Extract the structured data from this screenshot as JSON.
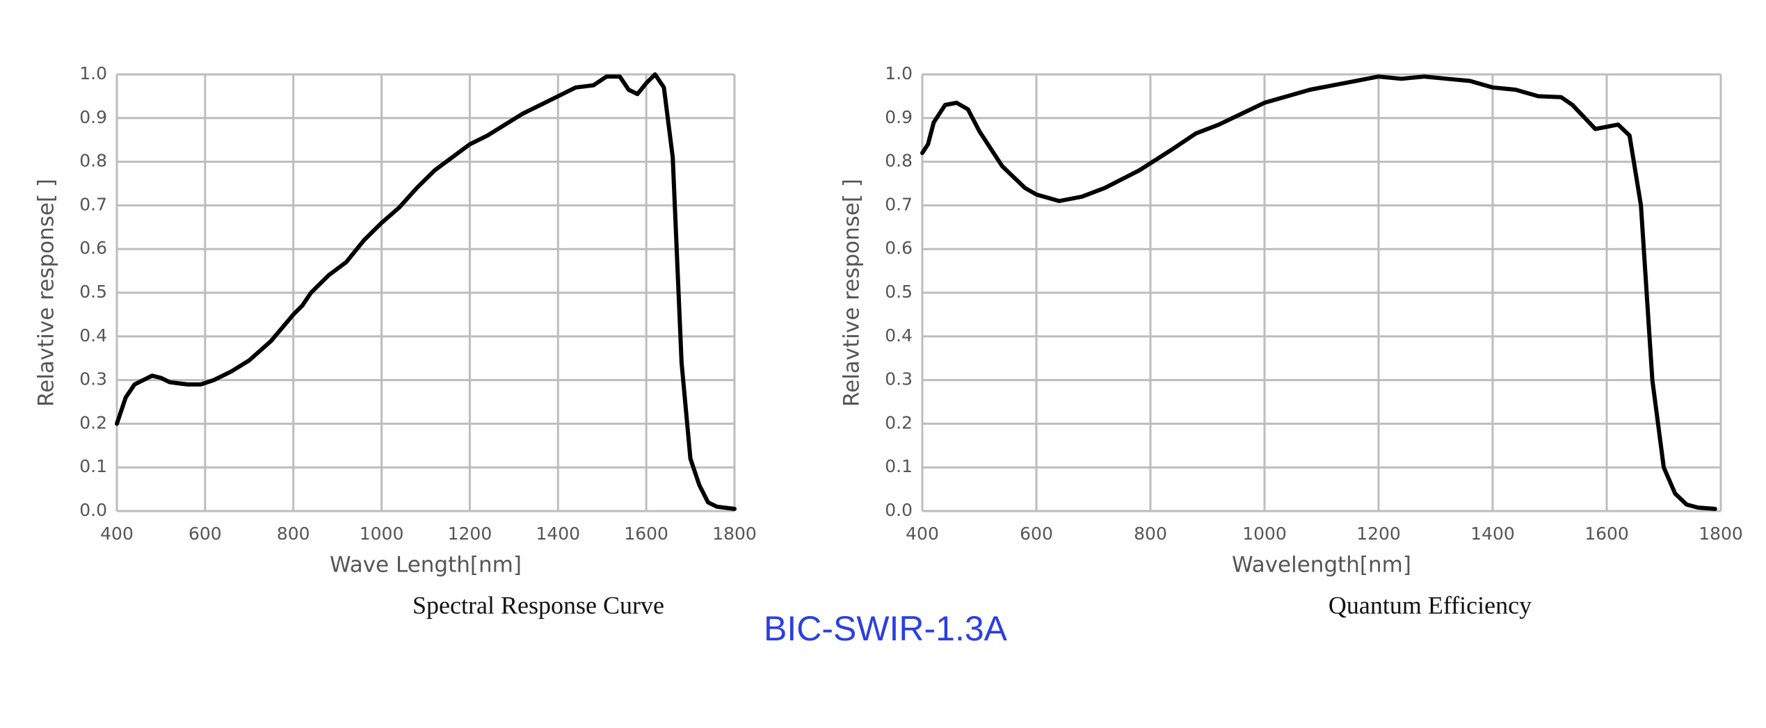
{
  "label": "BIC-SWIR-1.3A",
  "chart_data": [
    {
      "type": "line",
      "title": "Spectral Response Curve",
      "xlabel": "Wave Length[nm]",
      "ylabel": "Relavtive response[ ]",
      "color": "#000000",
      "grid": true,
      "x": [
        400,
        420,
        440,
        460,
        480,
        500,
        520,
        560,
        590,
        620,
        660,
        700,
        750,
        800,
        820,
        840,
        880,
        920,
        960,
        1000,
        1040,
        1080,
        1120,
        1160,
        1200,
        1240,
        1280,
        1320,
        1360,
        1400,
        1440,
        1480,
        1510,
        1540,
        1560,
        1580,
        1600,
        1620,
        1640,
        1660,
        1680,
        1700,
        1720,
        1740,
        1760,
        1800
      ],
      "values": [
        0.2,
        0.26,
        0.29,
        0.3,
        0.31,
        0.305,
        0.295,
        0.29,
        0.29,
        0.3,
        0.32,
        0.345,
        0.39,
        0.45,
        0.47,
        0.5,
        0.54,
        0.57,
        0.62,
        0.66,
        0.695,
        0.74,
        0.78,
        0.81,
        0.84,
        0.86,
        0.885,
        0.91,
        0.93,
        0.95,
        0.97,
        0.975,
        0.995,
        0.995,
        0.965,
        0.955,
        0.98,
        1.0,
        0.97,
        0.81,
        0.34,
        0.12,
        0.06,
        0.02,
        0.01,
        0.005
      ],
      "xlim": [
        400,
        1800
      ],
      "xticks": [
        400,
        600,
        800,
        1000,
        1200,
        1400,
        1600,
        1800
      ],
      "ylim": [
        0,
        1
      ],
      "yticks": [
        {
          "value": 0,
          "label": "0.0"
        },
        0.1,
        0.2,
        0.3,
        0.4,
        0.5,
        0.6,
        0.7,
        0.8,
        0.9,
        {
          "value": 1,
          "label": "1.0"
        }
      ]
    },
    {
      "type": "line",
      "title": "Quantum Efficiency",
      "xlabel": "Wavelength[nm]",
      "ylabel": "Relavtive response[ ]",
      "color": "#000000",
      "grid": true,
      "x": [
        400,
        410,
        420,
        440,
        460,
        480,
        500,
        540,
        580,
        600,
        640,
        680,
        720,
        780,
        840,
        880,
        920,
        960,
        1000,
        1040,
        1080,
        1120,
        1160,
        1200,
        1240,
        1280,
        1320,
        1360,
        1400,
        1440,
        1480,
        1520,
        1540,
        1580,
        1620,
        1640,
        1660,
        1680,
        1700,
        1720,
        1740,
        1760,
        1790
      ],
      "values": [
        0.82,
        0.84,
        0.89,
        0.93,
        0.935,
        0.92,
        0.87,
        0.79,
        0.74,
        0.725,
        0.71,
        0.72,
        0.74,
        0.78,
        0.83,
        0.865,
        0.885,
        0.91,
        0.935,
        0.95,
        0.965,
        0.975,
        0.985,
        0.995,
        0.99,
        0.995,
        0.99,
        0.985,
        0.97,
        0.965,
        0.95,
        0.948,
        0.93,
        0.875,
        0.885,
        0.86,
        0.7,
        0.3,
        0.1,
        0.04,
        0.015,
        0.008,
        0.005
      ],
      "xlim": [
        400,
        1800
      ],
      "xticks": [
        400,
        600,
        800,
        1000,
        1200,
        1400,
        1600,
        1800
      ],
      "ylim": [
        0,
        1
      ],
      "yticks": [
        {
          "value": 0,
          "label": "0.0"
        },
        0.1,
        0.2,
        0.3,
        0.4,
        0.5,
        0.6,
        0.7,
        0.8,
        0.9,
        {
          "value": 1,
          "label": "1.0"
        }
      ]
    }
  ]
}
